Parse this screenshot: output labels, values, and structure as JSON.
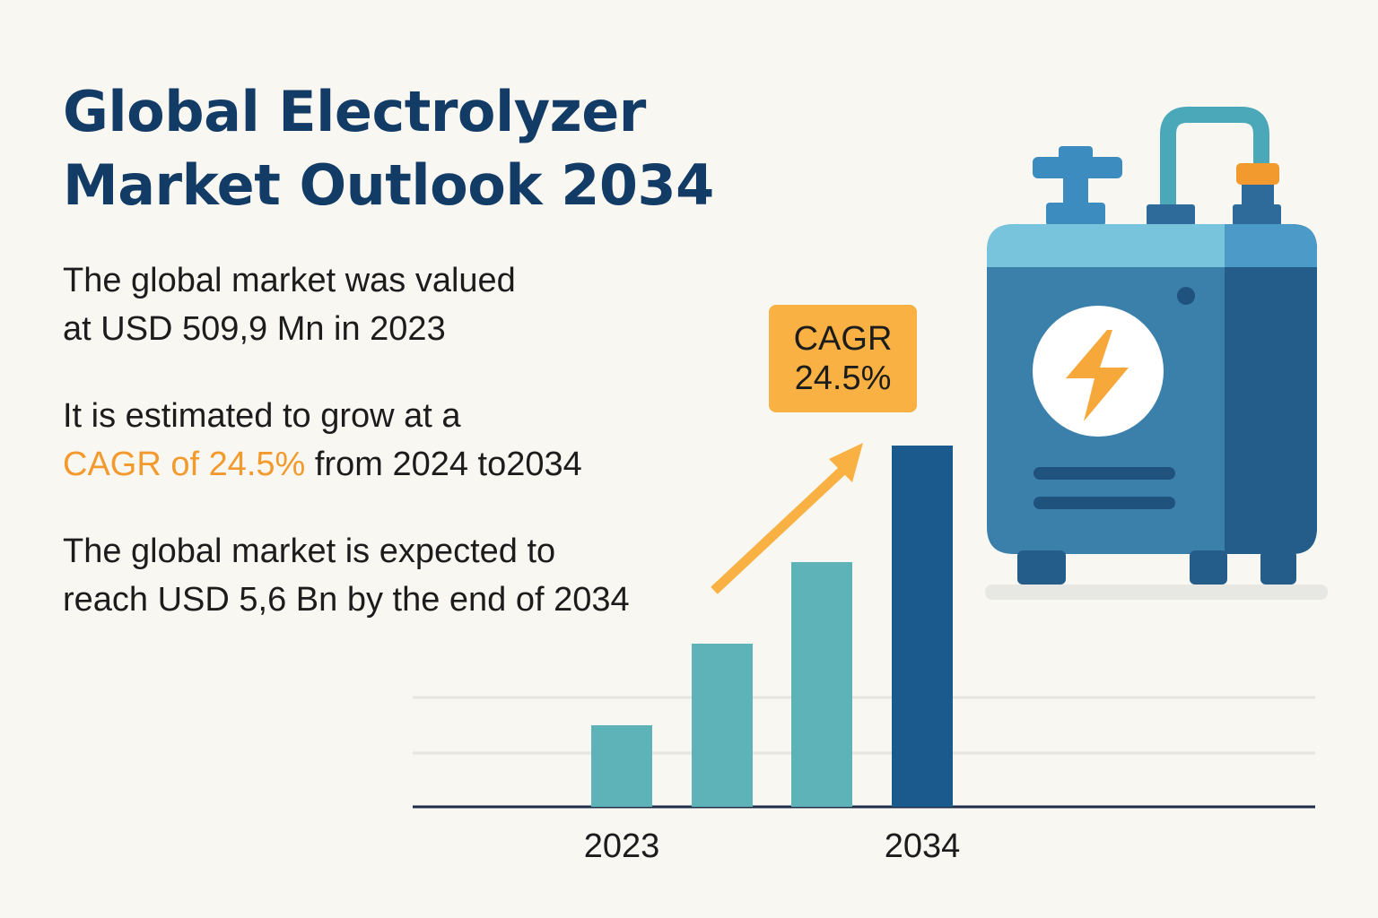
{
  "title": {
    "line1": "Global Electrolyzer",
    "line2": "Market Outlook 2034"
  },
  "statements": {
    "s1_line1": "The global market was valued",
    "s1_line2": "at USD 509,9 Mn in 2023",
    "s2_line1": "It is estimated to grow at a",
    "s2_highlight": "CAGR of 24.5%",
    "s2_rest": " from 2024 to2034",
    "s3_line1": "The global market is expected to",
    "s3_line2": "reach USD 5,6 Bn by the end of 2034"
  },
  "badge": {
    "line1": "CAGR",
    "line2": "24.5%"
  },
  "colors": {
    "title": "#123b66",
    "accent": "#f39a2e",
    "badge": "#f8b142",
    "bar_light": "#5db3b8",
    "bar_dark": "#1b5a8c",
    "arrow": "#f8b142"
  },
  "icons": [
    "electrolyzer-icon",
    "lightning-bolt-icon",
    "up-arrow-icon"
  ],
  "chart_data": {
    "type": "bar",
    "categories": [
      "2023",
      "",
      "",
      "2034"
    ],
    "values": [
      0.35,
      0.7,
      1.05,
      1.55
    ],
    "value_note_scale": "relative, unlabeled y-axis",
    "x_tick_labels": [
      "2023",
      "2034"
    ],
    "grid": true,
    "highlight_last": true
  }
}
